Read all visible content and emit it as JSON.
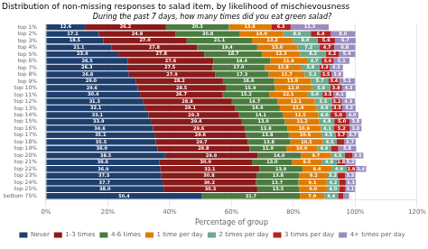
{
  "chart_data": {
    "type": "bar",
    "orientation": "horizontal",
    "stacked": true,
    "title": "Distribution of non-missing responses to salad item, by likelihood of mischievousness",
    "subtitle": "During the past 7 days, how many times did you eat green salad?",
    "xlabel": "Percentage of group",
    "categories": [
      "top 1%",
      "top 2%",
      "top 3%",
      "top 4%",
      "top 5%",
      "top 6%",
      "top 7%",
      "top 8%",
      "top 9%",
      "top 10%",
      "top 11%",
      "top 12%",
      "top 13%",
      "top 14%",
      "top 15%",
      "top 16%",
      "top 17%",
      "top 18%",
      "top 19%",
      "top 20%",
      "top 21%",
      "top 22%",
      "top 23%",
      "top 24%",
      "top 25%",
      "bottom 75%"
    ],
    "series": [
      {
        "name": "Never",
        "color": "#1e3f6e",
        "values": [
          12.6,
          17.1,
          18.5,
          21.1,
          23.4,
          26.5,
          26.3,
          26.8,
          29.0,
          29.6,
          30.4,
          31.3,
          32.1,
          33.1,
          33.9,
          34.6,
          35.1,
          35.5,
          36.0,
          38.5,
          36.6,
          36.9,
          37.3,
          37.7,
          38.0,
          50.4
        ],
        "value_labels": [
          "12.6",
          "17.1",
          "18.5",
          "21.1",
          "23.4",
          "26.5",
          "26.3",
          "26.8",
          "29.0",
          "29.6",
          "30.4",
          "31.3",
          "32.1",
          "33.1",
          "33.9",
          "34.6",
          "35.1",
          "35.5",
          "36.0",
          "38.5",
          "36.6",
          "36.9",
          "37.3",
          "37.7",
          "38.0",
          "50.4"
        ]
      },
      {
        "name": "1-3 times",
        "color": "#8b1a1a",
        "values": [
          26.2,
          24.8,
          27.0,
          27.8,
          27.8,
          27.6,
          27.5,
          27.9,
          28.2,
          28.5,
          26.7,
          28.8,
          29.1,
          29.3,
          29.4,
          29.6,
          29.6,
          29.7,
          29.8,
          29.9,
          30.0,
          32.1,
          30.8,
          30.2,
          30.3,
          0.0
        ],
        "value_labels": [
          "26.2",
          "24.8",
          "27.0",
          "27.8",
          "27.8",
          "27.6",
          "27.5",
          "27.9",
          "28.2",
          "28.5",
          "26.7",
          "28.8",
          "29.1",
          "29.3",
          "29.4",
          "29.6",
          "29.6",
          "29.7",
          "29.8",
          "29.9",
          "30.0",
          "32.1",
          "30.8",
          "30.2",
          "30.3",
          null
        ]
      },
      {
        "name": "4-6 times",
        "color": "#4a7c3f",
        "values": [
          20.3,
          20.8,
          21.1,
          19.4,
          18.7,
          18.4,
          17.0,
          17.3,
          16.6,
          15.9,
          15.2,
          14.7,
          14.4,
          14.1,
          13.9,
          13.8,
          13.8,
          13.8,
          11.9,
          14.0,
          13.0,
          13.9,
          13.8,
          13.7,
          13.5,
          31.7
        ],
        "value_labels": [
          "20.3",
          "20.8",
          "21.1",
          "19.4",
          "18.7",
          "18.4",
          "17.0",
          "17.3",
          "16.6",
          "15.9",
          "15.2",
          "14.7",
          "14.4",
          "14.1",
          "13.9",
          "13.8",
          "13.8",
          "13.8",
          "11.9",
          "14.0",
          "13.0",
          "13.9",
          "13.8",
          "13.7",
          "13.5",
          "31.7"
        ]
      },
      {
        "name": "1 time per day",
        "color": "#e07b00",
        "values": [
          13.6,
          14.0,
          13.2,
          13.0,
          12.3,
          11.9,
          11.8,
          11.7,
          11.9,
          12.0,
          12.1,
          12.1,
          11.9,
          11.5,
          11.2,
          10.9,
          10.6,
          10.5,
          10.0,
          9.7,
          9.5,
          9.4,
          9.2,
          9.1,
          9.0,
          7.9
        ],
        "value_labels": [
          "13.6",
          "14.0",
          "13.2",
          "13.0",
          "12.3",
          "11.9",
          "11.8",
          "11.7",
          "11.9",
          "12.0",
          "12.1",
          "12.1",
          "11.9",
          "11.5",
          "11.2",
          "10.9",
          "10.6",
          "10.5",
          "10.0",
          "9.7",
          "9.5",
          "9.4",
          "9.2",
          "9.1",
          "9.0",
          "7.9"
        ]
      },
      {
        "name": "2 times per day",
        "color": "#6aaa8e",
        "values": [
          0.1,
          8.9,
          8.0,
          7.2,
          8.2,
          4.7,
          5.8,
          5.1,
          5.7,
          5.9,
          5.0,
          5.5,
          4.9,
          4.0,
          4.8,
          4.1,
          4.5,
          4.5,
          4.4,
          4.5,
          4.9,
          4.9,
          3.2,
          4.2,
          4.0,
          4.4
        ],
        "value_labels": [
          null,
          "8.9",
          "8.0",
          "7.2",
          "8.2",
          "4.7",
          "5.8",
          "5.1",
          "5.7",
          "5.9",
          "5.0",
          "5.5",
          "4.9",
          "4.0",
          "4.8",
          "4.1",
          "4.5",
          "4.5",
          "4.4",
          "4.5",
          "4.9",
          "4.9",
          "3.2",
          "4.2",
          "4.0",
          "4.4"
        ]
      },
      {
        "name": "3 times per day",
        "color": "#b22222",
        "values": [
          6.3,
          6.4,
          5.6,
          4.7,
          4.2,
          3.9,
          3.3,
          3.5,
          3.4,
          3.8,
          3.5,
          3.2,
          3.5,
          5.0,
          5.0,
          5.2,
          3.7,
          2.4,
          2.4,
          2.5,
          2.8,
          2.9,
          2.4,
          2.0,
          2.0,
          1.7
        ],
        "value_labels": [
          "6.3",
          "6.4",
          "5.6",
          "4.7",
          "4.2",
          "3.9",
          "3.3",
          "3.5",
          "3.4",
          "3.8",
          "3.5",
          "3.2",
          "3.5",
          "5.0",
          "5.0",
          "5.2",
          "3.7",
          null,
          null,
          null,
          "2.8",
          "2.9",
          null,
          null,
          null,
          null
        ]
      },
      {
        "name": "4+ times per day",
        "color": "#9b8dc0",
        "values": [
          12.3,
          8.0,
          6.7,
          6.8,
          5.4,
          5.1,
          4.3,
          3.8,
          5.1,
          4.3,
          4.1,
          4.3,
          4.2,
          4.0,
          3.8,
          3.8,
          3.7,
          3.7,
          5.8,
          3.5,
          3.2,
          3.4,
          3.3,
          3.3,
          3.1,
          1.9
        ],
        "value_labels": [
          "12.3",
          "8.0",
          "6.7",
          "6.8",
          "5.4",
          "5.1",
          "4.3",
          "3.8",
          "5.1",
          "4.3",
          "4.1",
          "4.3",
          "4.2",
          "4.0",
          "3.8",
          "3.8",
          "3.7",
          "3.7",
          "5.8",
          "3.5",
          "3.2",
          "3.4",
          "3.3",
          "3.3",
          "3.1",
          null
        ]
      }
    ],
    "xlim": [
      0,
      120
    ],
    "xticks": [
      {
        "value": 0,
        "label": "0%"
      },
      {
        "value": 20,
        "label": "20%"
      },
      {
        "value": 40,
        "label": "40%"
      },
      {
        "value": 60,
        "label": "60%"
      },
      {
        "value": 80,
        "label": "80%"
      },
      {
        "value": 100,
        "label": "100%"
      },
      {
        "value": 120,
        "label": "120%"
      }
    ],
    "grid": true,
    "legend": "bottom",
    "data_labels": true
  }
}
